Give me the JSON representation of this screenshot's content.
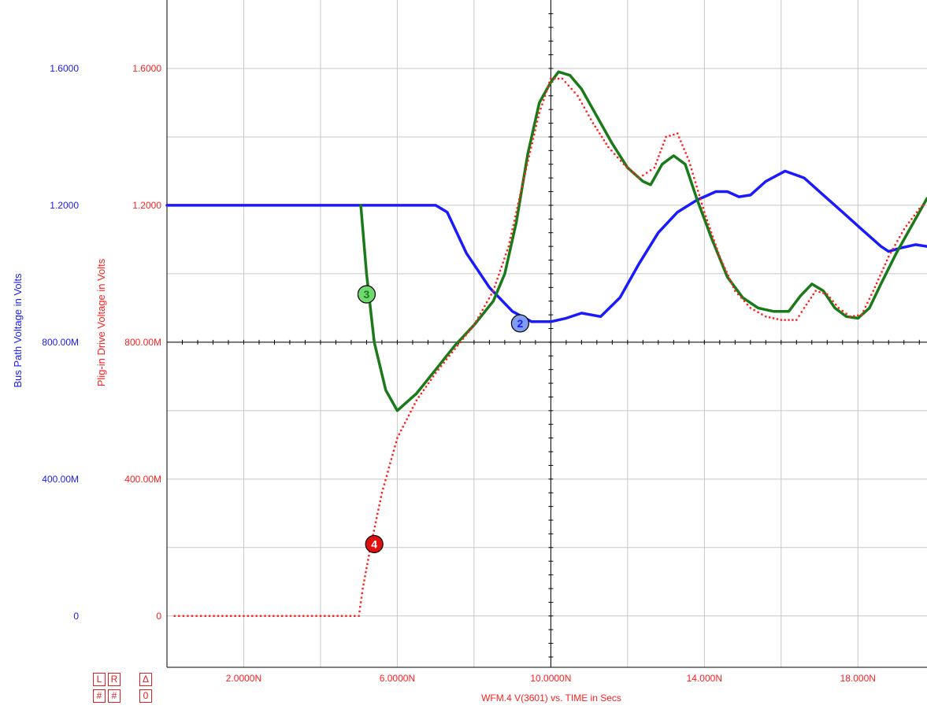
{
  "chart_data": {
    "type": "line",
    "xlabel": "WFM.4   V(3601) vs. TIME in Secs",
    "ylabel_left": "Bus Path Voltage in Volts",
    "ylabel_right": "Plig-in Drive Voltage in Volts",
    "xlim": [
      0.0,
      19.8
    ],
    "ylim": [
      -0.15,
      1.8
    ],
    "x_ticks": [
      "2.0000N",
      "6.0000N",
      "10.0000N",
      "14.000N",
      "18.000N"
    ],
    "y_ticks_left": [
      "0",
      "400.00M",
      "800.00M",
      "1.2000",
      "1.6000"
    ],
    "y_ticks_right": [
      "0",
      "400.00M",
      "800.00M",
      "1.2000",
      "1.6000"
    ],
    "grid": true,
    "series": [
      {
        "color": "#1a1aff",
        "style": "solid",
        "x": [
          0,
          2,
          4,
          6,
          7.0,
          7.3,
          7.8,
          8.4,
          9.0,
          9.5,
          10.0,
          10.4,
          10.8,
          11.3,
          11.8,
          12.3,
          12.8,
          13.3,
          13.8,
          14.3,
          14.6,
          14.9,
          15.2,
          15.6,
          16.1,
          16.6,
          17.1,
          17.6,
          18.1,
          18.6,
          18.8,
          19.1,
          19.5,
          19.8
        ],
        "y": [
          1.2,
          1.2,
          1.2,
          1.2,
          1.2,
          1.18,
          1.06,
          0.96,
          0.89,
          0.86,
          0.86,
          0.87,
          0.885,
          0.875,
          0.93,
          1.03,
          1.12,
          1.18,
          1.215,
          1.24,
          1.24,
          1.225,
          1.23,
          1.27,
          1.3,
          1.28,
          1.23,
          1.18,
          1.13,
          1.08,
          1.065,
          1.075,
          1.085,
          1.08
        ]
      },
      {
        "color": "#1a7a1a",
        "style": "solid",
        "x": [
          5.05,
          5.2,
          5.4,
          5.7,
          6.0,
          6.5,
          7.0,
          7.5,
          8.0,
          8.5,
          8.8,
          9.1,
          9.4,
          9.7,
          10.0,
          10.2,
          10.5,
          10.8,
          11.2,
          11.6,
          12.0,
          12.4,
          12.6,
          12.9,
          13.2,
          13.5,
          13.8,
          14.2,
          14.6,
          15.0,
          15.4,
          15.8,
          16.2,
          16.5,
          16.8,
          17.1,
          17.4,
          17.7,
          18.0,
          18.3,
          18.6,
          19.0,
          19.4,
          19.8
        ],
        "y": [
          1.2,
          1.0,
          0.8,
          0.66,
          0.6,
          0.65,
          0.72,
          0.79,
          0.85,
          0.92,
          1.0,
          1.15,
          1.35,
          1.5,
          1.56,
          1.59,
          1.58,
          1.54,
          1.46,
          1.38,
          1.31,
          1.27,
          1.26,
          1.32,
          1.345,
          1.32,
          1.22,
          1.1,
          0.99,
          0.93,
          0.9,
          0.89,
          0.89,
          0.935,
          0.97,
          0.95,
          0.9,
          0.875,
          0.87,
          0.9,
          0.97,
          1.06,
          1.14,
          1.22
        ]
      },
      {
        "color": "#ff2020",
        "style": "dotted",
        "x": [
          0.2,
          1,
          2,
          3,
          4,
          5.0,
          5.1,
          5.3,
          5.6,
          6.0,
          6.5,
          7.0,
          7.5,
          8.0,
          8.5,
          8.9,
          9.3,
          9.7,
          10.0,
          10.3,
          10.7,
          11.1,
          11.5,
          11.9,
          12.3,
          12.7,
          13.0,
          13.3,
          13.6,
          14.0,
          14.4,
          14.8,
          15.2,
          15.6,
          16.0,
          16.4,
          16.6,
          16.9,
          17.2,
          17.5,
          17.8,
          18.1,
          18.4,
          18.8,
          19.2,
          19.6,
          19.8
        ],
        "y": [
          0,
          0,
          0,
          0,
          0,
          0,
          0.08,
          0.2,
          0.36,
          0.52,
          0.63,
          0.71,
          0.78,
          0.85,
          0.95,
          1.08,
          1.28,
          1.47,
          1.57,
          1.57,
          1.52,
          1.44,
          1.37,
          1.32,
          1.28,
          1.31,
          1.4,
          1.41,
          1.33,
          1.18,
          1.05,
          0.95,
          0.9,
          0.875,
          0.865,
          0.865,
          0.9,
          0.95,
          0.94,
          0.9,
          0.875,
          0.88,
          0.95,
          1.05,
          1.13,
          1.19,
          1.21
        ]
      }
    ],
    "markers": [
      {
        "label": "3",
        "x": 5.2,
        "y": 0.94,
        "fill": "#6fd86f",
        "text_color": "#1a7a1a"
      },
      {
        "label": "2",
        "x": 9.2,
        "y": 0.855,
        "fill": "#7f9cf0",
        "text_color": "#1a1aff"
      },
      {
        "label": "4",
        "x": 5.4,
        "y": 0.21,
        "fill": "#e01010",
        "text_color": "#ffffff"
      }
    ]
  },
  "controls": {
    "row1": [
      "L",
      "R",
      "Δ"
    ],
    "row2": [
      "#",
      "#",
      "0"
    ]
  }
}
